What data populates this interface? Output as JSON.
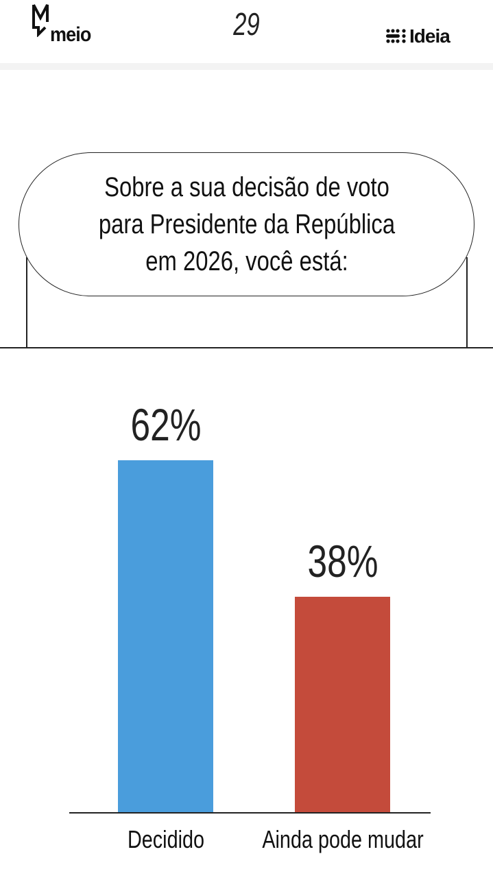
{
  "header": {
    "left_logo": "meio",
    "page_number": "29",
    "right_logo": "Ideia"
  },
  "question": "Sobre a sua decisão de voto\npara Presidente da República\nem 2026, você está:",
  "chart_data": {
    "type": "bar",
    "categories": [
      "Decidido",
      "Ainda pode mudar"
    ],
    "values": [
      62,
      38
    ],
    "value_labels": [
      "62%",
      "38%"
    ],
    "colors": [
      "#4a9ddc",
      "#c44b3b"
    ],
    "ylim": [
      0,
      100
    ],
    "grid": false,
    "title": "",
    "xlabel": "",
    "ylabel": ""
  }
}
